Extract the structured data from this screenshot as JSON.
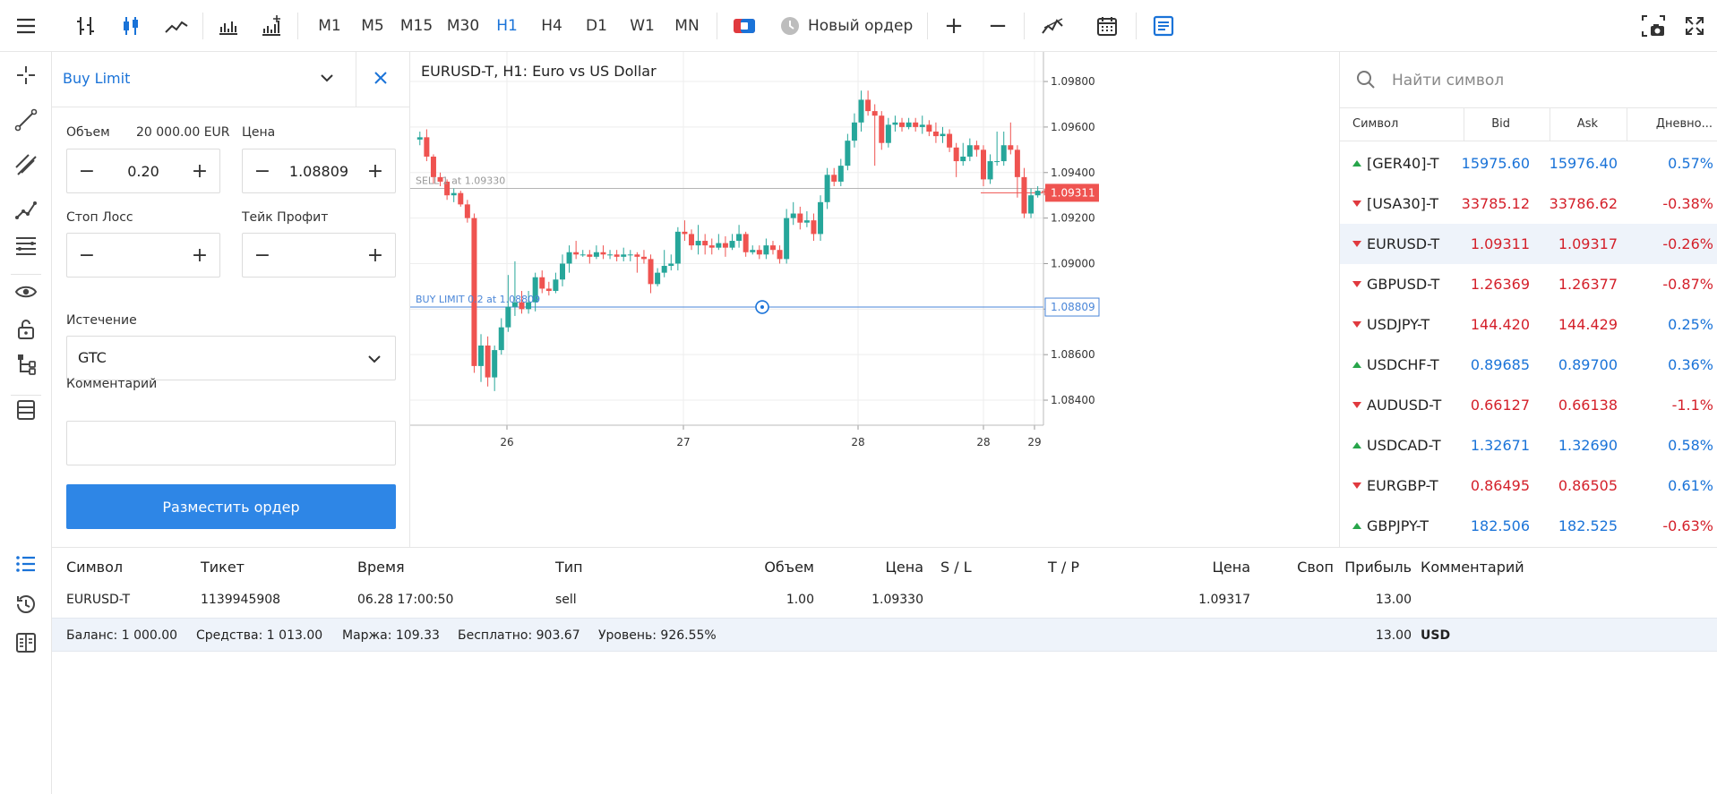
{
  "toolbar": {
    "timeframes": [
      "M1",
      "M5",
      "M15",
      "M30",
      "H1",
      "H4",
      "D1",
      "W1",
      "MN"
    ],
    "active_timeframe": "H1",
    "new_order_label": "Новый ордер",
    "plus_label": "+",
    "minus_label": "−"
  },
  "order_form": {
    "title": "Buy Limit",
    "volume_label": "Объем",
    "volume_note": "20 000.00 EUR",
    "volume_value": "0.20",
    "price_label": "Цена",
    "price_value": "1.08809",
    "stop_loss_label": "Стоп Лосс",
    "take_profit_label": "Тейк Профит",
    "stop_loss_value": "",
    "take_profit_value": "",
    "expiry_label": "Истечение",
    "expiry_value": "GTC",
    "comment_label": "Комментарий",
    "comment_value": "",
    "submit_label": "Разместить ордер",
    "minus": "−",
    "plus": "+"
  },
  "chart": {
    "title": "EURUSD-T, H1: Euro vs US Dollar",
    "sell_line_label": "SELL 1 at 1.09330",
    "buy_limit_label": "BUY LIMIT 0.2 at 1.08809",
    "current_price_tag": "1.09311",
    "buy_limit_tag": "1.08809"
  },
  "chart_data": {
    "type": "candlestick",
    "title": "EURUSD-T, H1: Euro vs US Dollar",
    "y_ticks": [
      "1.09800",
      "1.09600",
      "1.09400",
      "1.09200",
      "1.09000",
      "1.08800",
      "1.08600",
      "1.08400"
    ],
    "y_tick_values": [
      1.098,
      1.096,
      1.094,
      1.092,
      1.09,
      1.088,
      1.086,
      1.084
    ],
    "x_ticks": [
      "26",
      "27",
      "28",
      "28",
      "29"
    ],
    "ylim": [
      1.0829,
      1.0993
    ],
    "sell_price": 1.0933,
    "buy_limit_price": 1.08809,
    "current_price": 1.09311,
    "candles": [
      [
        1.09545,
        1.09555,
        1.0952,
        1.0958
      ],
      [
        1.09555,
        1.0947,
        1.0945,
        1.0959
      ],
      [
        1.0947,
        1.0938,
        1.0935,
        1.0948
      ],
      [
        1.0938,
        1.0936,
        1.0934,
        1.094
      ],
      [
        1.0936,
        1.093,
        1.0928,
        1.0937
      ],
      [
        1.093,
        1.0931,
        1.0927,
        1.0933
      ],
      [
        1.0931,
        1.0926,
        1.0925,
        1.0932
      ],
      [
        1.0926,
        1.092,
        1.0918,
        1.0928
      ],
      [
        1.092,
        1.0855,
        1.0852,
        1.0922
      ],
      [
        1.0855,
        1.0864,
        1.0848,
        1.0869
      ],
      [
        1.0864,
        1.085,
        1.0846,
        1.0868
      ],
      [
        1.085,
        1.0862,
        1.0844,
        1.0864
      ],
      [
        1.0862,
        1.0872,
        1.086,
        1.0876
      ],
      [
        1.0872,
        1.0881,
        1.087,
        1.0895
      ],
      [
        1.0881,
        1.0883,
        1.0877,
        1.0901
      ],
      [
        1.0883,
        1.088,
        1.0878,
        1.0888
      ],
      [
        1.088,
        1.0883,
        1.0878,
        1.0888
      ],
      [
        1.0883,
        1.0894,
        1.0879,
        1.0896
      ],
      [
        1.0894,
        1.0889,
        1.0887,
        1.0897
      ],
      [
        1.0889,
        1.0888,
        1.0886,
        1.0892
      ],
      [
        1.0888,
        1.0893,
        1.0887,
        1.0896
      ],
      [
        1.0893,
        1.09,
        1.089,
        1.0904
      ],
      [
        1.09,
        1.0905,
        1.0896,
        1.0908
      ],
      [
        1.0905,
        1.0904,
        1.0902,
        1.091
      ],
      [
        1.0904,
        1.0904,
        1.0903,
        1.0906
      ],
      [
        1.0904,
        1.0903,
        1.09,
        1.0906
      ],
      [
        1.0903,
        1.0905,
        1.0902,
        1.0908
      ],
      [
        1.0905,
        1.0904,
        1.0902,
        1.0908
      ],
      [
        1.0904,
        1.0904,
        1.0902,
        1.0906
      ],
      [
        1.0904,
        1.0903,
        1.0901,
        1.0906
      ],
      [
        1.0903,
        1.0904,
        1.0901,
        1.0907
      ],
      [
        1.0904,
        1.0904,
        1.0901,
        1.0906
      ],
      [
        1.0904,
        1.0903,
        1.0896,
        1.0905
      ],
      [
        1.0903,
        1.0902,
        1.09,
        1.0906
      ],
      [
        1.0902,
        1.0891,
        1.0887,
        1.0904
      ],
      [
        1.0891,
        1.0896,
        1.089,
        1.0898
      ],
      [
        1.0896,
        1.0899,
        1.0894,
        1.0906
      ],
      [
        1.0899,
        1.09,
        1.0897,
        1.0904
      ],
      [
        1.09,
        1.0914,
        1.0897,
        1.0916
      ],
      [
        1.0914,
        1.0913,
        1.091,
        1.0919
      ],
      [
        1.0913,
        1.0908,
        1.0906,
        1.0915
      ],
      [
        1.0908,
        1.091,
        1.0904,
        1.0917
      ],
      [
        1.091,
        1.0908,
        1.0904,
        1.0913
      ],
      [
        1.0908,
        1.0907,
        1.0904,
        1.0911
      ],
      [
        1.0907,
        1.0909,
        1.0906,
        1.0913
      ],
      [
        1.0909,
        1.0907,
        1.0903,
        1.0912
      ],
      [
        1.0907,
        1.091,
        1.0906,
        1.0913
      ],
      [
        1.091,
        1.0913,
        1.0907,
        1.0917
      ],
      [
        1.0913,
        1.0905,
        1.0903,
        1.0914
      ],
      [
        1.0905,
        1.0906,
        1.0904,
        1.0908
      ],
      [
        1.0906,
        1.0904,
        1.0902,
        1.0908
      ],
      [
        1.0904,
        1.0908,
        1.0902,
        1.0911
      ],
      [
        1.0908,
        1.0906,
        1.0904,
        1.091
      ],
      [
        1.0906,
        1.0902,
        1.09,
        1.0908
      ],
      [
        1.0902,
        1.092,
        1.09,
        1.0924
      ],
      [
        1.092,
        1.0922,
        1.0917,
        1.0927
      ],
      [
        1.0922,
        1.0918,
        1.0915,
        1.0925
      ],
      [
        1.0918,
        1.0919,
        1.0916,
        1.0923
      ],
      [
        1.0919,
        1.0913,
        1.091,
        1.0922
      ],
      [
        1.0913,
        1.0927,
        1.091,
        1.093
      ],
      [
        1.0927,
        1.0939,
        1.0924,
        1.0942
      ],
      [
        1.0939,
        1.0936,
        1.0934,
        1.0942
      ],
      [
        1.0936,
        1.0943,
        1.0934,
        1.0946
      ],
      [
        1.0943,
        1.0954,
        1.0941,
        1.0957
      ],
      [
        1.0954,
        1.0962,
        1.0951,
        1.0966
      ],
      [
        1.0962,
        1.0972,
        1.0958,
        1.0976
      ],
      [
        1.0972,
        1.0967,
        1.0965,
        1.0976
      ],
      [
        1.0967,
        1.0965,
        1.0943,
        1.097
      ],
      [
        1.0965,
        1.0953,
        1.095,
        1.0967
      ],
      [
        1.0953,
        1.0961,
        1.0951,
        1.0964
      ],
      [
        1.0961,
        1.0962,
        1.0958,
        1.0965
      ],
      [
        1.0962,
        1.096,
        1.0958,
        1.0964
      ],
      [
        1.096,
        1.0962,
        1.0959,
        1.0964
      ],
      [
        1.0962,
        1.096,
        1.0958,
        1.0964
      ],
      [
        1.096,
        1.0961,
        1.0957,
        1.0965
      ],
      [
        1.0961,
        1.0958,
        1.0956,
        1.0963
      ],
      [
        1.0958,
        1.0956,
        1.0953,
        1.0962
      ],
      [
        1.0956,
        1.0957,
        1.0953,
        1.096
      ],
      [
        1.0957,
        1.0951,
        1.0949,
        1.0959
      ],
      [
        1.0951,
        1.0945,
        1.0938,
        1.0953
      ],
      [
        1.0945,
        1.0947,
        1.0943,
        1.0953
      ],
      [
        1.0947,
        1.0952,
        1.0945,
        1.0955
      ],
      [
        1.0952,
        1.095,
        1.0947,
        1.0954
      ],
      [
        1.095,
        1.0937,
        1.0934,
        1.0952
      ],
      [
        1.0937,
        1.0945,
        1.0935,
        1.0948
      ],
      [
        1.0945,
        1.0945,
        1.0943,
        1.0958
      ],
      [
        1.0945,
        1.0952,
        1.0943,
        1.0958
      ],
      [
        1.0952,
        1.095,
        1.0948,
        1.0962
      ],
      [
        1.095,
        1.0938,
        1.0929,
        1.0952
      ],
      [
        1.0938,
        1.0922,
        1.092,
        1.0942
      ],
      [
        1.0922,
        1.093,
        1.092,
        1.0933
      ],
      [
        1.093,
        1.0932,
        1.0929,
        1.0934
      ],
      [
        1.0932,
        1.09311,
        1.093,
        1.0933
      ]
    ]
  },
  "watchlist": {
    "search_placeholder": "Найти символ",
    "headers": {
      "symbol": "Символ",
      "bid": "Bid",
      "ask": "Ask",
      "daily": "Дневно..."
    },
    "rows": [
      {
        "symbol": "[GER40]-T",
        "bid": "15975.60",
        "ask": "15976.40",
        "change": "0.57%",
        "dir": "up",
        "color": "blue"
      },
      {
        "symbol": "[USA30]-T",
        "bid": "33785.12",
        "ask": "33786.62",
        "change": "-0.38%",
        "dir": "down",
        "color": "red"
      },
      {
        "symbol": "EURUSD-T",
        "bid": "1.09311",
        "ask": "1.09317",
        "change": "-0.26%",
        "dir": "down",
        "color": "red"
      },
      {
        "symbol": "GBPUSD-T",
        "bid": "1.26369",
        "ask": "1.26377",
        "change": "-0.87%",
        "dir": "down",
        "color": "red"
      },
      {
        "symbol": "USDJPY-T",
        "bid": "144.420",
        "ask": "144.429",
        "change": "0.25%",
        "dir": "down",
        "color": "red"
      },
      {
        "symbol": "USDCHF-T",
        "bid": "0.89685",
        "ask": "0.89700",
        "change": "0.36%",
        "dir": "up",
        "color": "blue"
      },
      {
        "symbol": "AUDUSD-T",
        "bid": "0.66127",
        "ask": "0.66138",
        "change": "-1.1%",
        "dir": "down",
        "color": "red"
      },
      {
        "symbol": "USDCAD-T",
        "bid": "1.32671",
        "ask": "1.32690",
        "change": "0.58%",
        "dir": "up",
        "color": "blue"
      },
      {
        "symbol": "EURGBP-T",
        "bid": "0.86495",
        "ask": "0.86505",
        "change": "0.61%",
        "dir": "down",
        "color": "red"
      },
      {
        "symbol": "GBPJPY-T",
        "bid": "182.506",
        "ask": "182.525",
        "change": "-0.63%",
        "dir": "up",
        "color": "blue"
      }
    ]
  },
  "positions": {
    "headers": {
      "symbol": "Символ",
      "ticket": "Тикет",
      "time": "Время",
      "type": "Тип",
      "volume": "Объем",
      "price": "Цена",
      "sl": "S / L",
      "tp": "T / P",
      "current_price": "Цена",
      "swap": "Своп",
      "profit": "Прибыль",
      "comment": "Комментарий"
    },
    "rows": [
      {
        "symbol": "EURUSD-T",
        "ticket": "1139945908",
        "time": "06.28 17:00:50",
        "type": "sell",
        "volume": "1.00",
        "price": "1.09330",
        "sl": "",
        "tp": "",
        "current_price": "1.09317",
        "swap": "",
        "profit": "13.00",
        "comment": ""
      }
    ],
    "summary": {
      "balance": "Баланс: 1 000.00",
      "equity": "Средства: 1 013.00",
      "margin": "Маржа: 109.33",
      "free": "Бесплатно: 903.67",
      "level": "Уровень: 926.55%",
      "profit": "13.00",
      "currency": "USD"
    }
  },
  "colors": {
    "accent": "#1a73d8",
    "bull": "#26a69a",
    "bear": "#ef5350",
    "button": "#2e86e6"
  }
}
